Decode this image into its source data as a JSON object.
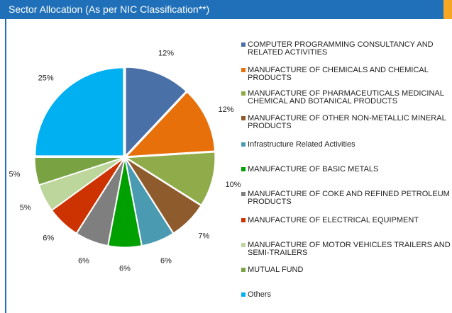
{
  "chart_data": {
    "type": "pie",
    "title": "Sector Allocation (As per NIC Classification**)",
    "categories": [
      "COMPUTER PROGRAMMING  CONSULTANCY AND RELATED ACTIVITIES",
      "MANUFACTURE OF CHEMICALS AND CHEMICAL PRODUCTS",
      "MANUFACTURE OF PHARMACEUTICALS  MEDICINAL CHEMICAL AND BOTANICAL PRODUCTS",
      "MANUFACTURE OF OTHER NON-METALLIC MINERAL PRODUCTS",
      "Infrastructure Related Activities",
      "MANUFACTURE OF BASIC METALS",
      "MANUFACTURE OF COKE AND REFINED PETROLEUM PRODUCTS",
      "MANUFACTURE OF ELECTRICAL EQUIPMENT",
      "MANUFACTURE OF MOTOR VEHICLES  TRAILERS AND SEMI-TRAILERS",
      "MUTUAL FUND",
      "Others"
    ],
    "values": [
      12,
      12,
      10,
      7,
      6,
      6,
      6,
      6,
      5,
      5,
      25
    ],
    "value_labels": [
      "12%",
      "12%",
      "10%",
      "7%",
      "6%",
      "6%",
      "6%",
      "6%",
      "5%",
      "5%",
      "25%"
    ],
    "colors": [
      "#4a70a8",
      "#e8700a",
      "#8fab4a",
      "#8e5b2c",
      "#4a9bb2",
      "#00a000",
      "#7f7f7f",
      "#cc3300",
      "#bcd69c",
      "#79a343",
      "#00b0f0"
    ]
  }
}
